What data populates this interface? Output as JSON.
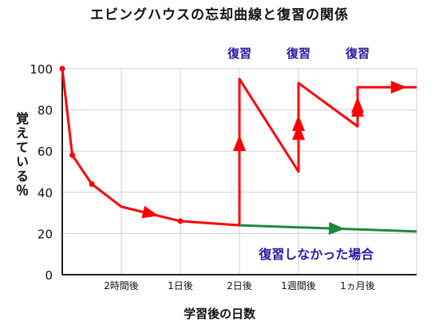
{
  "chart_data": {
    "type": "line",
    "title": "エビングハウスの忘却曲線と復習の関係",
    "ylabel": "覚えている％",
    "xlabel": "学習後の日数",
    "ylim": [
      0,
      100
    ],
    "yticks": [
      "0",
      "20",
      "40",
      "60",
      "80",
      "100"
    ],
    "xticks": [
      "2時間後",
      "1日後",
      "2日後",
      "1週間後",
      "1ヵ月後"
    ],
    "grid": true,
    "review_labels": [
      "復習",
      "復習",
      "復習"
    ],
    "no_review_label": "復習しなかった場合",
    "series": [
      {
        "color": "#ff0000",
        "points": [
          [
            0,
            100
          ],
          [
            0.17,
            58
          ],
          [
            0.5,
            44
          ],
          [
            1,
            33
          ],
          [
            2,
            26
          ],
          [
            3,
            24
          ],
          [
            3,
            95
          ],
          [
            4,
            50
          ],
          [
            4,
            93
          ],
          [
            5,
            72
          ],
          [
            5,
            91
          ],
          [
            6,
            91
          ]
        ]
      },
      {
        "color": "#1a8a3c",
        "points": [
          [
            3,
            24
          ],
          [
            6,
            21
          ]
        ]
      }
    ],
    "markers": [
      [
        0,
        100
      ],
      [
        0.17,
        58
      ],
      [
        0.5,
        44
      ],
      [
        2,
        26
      ]
    ],
    "colors": {
      "review_text": "#2a1aa0",
      "no_review_text": "#2a1aa0"
    }
  }
}
